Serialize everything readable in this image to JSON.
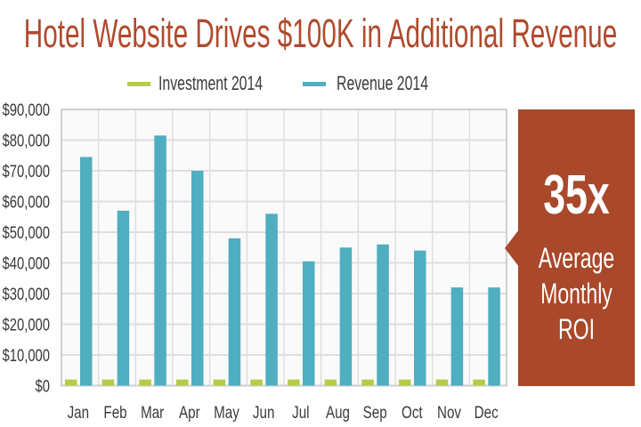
{
  "title": "Hotel Website Drives $100K in Additional Revenue",
  "colors": {
    "title": "#B04A2D",
    "investment": "#B5CC4A",
    "revenue": "#4FAEC0",
    "callout": "#A9482A",
    "grid": "#dedede",
    "axis_text": "#3a3a3a"
  },
  "callout": {
    "value": "35x",
    "line1": "Average",
    "line2": "Monthly",
    "line3": "ROI"
  },
  "chart_data": {
    "type": "bar",
    "title": "Hotel Website Drives $100K in Additional Revenue",
    "xlabel": "",
    "ylabel": "",
    "ylim": [
      0,
      90000
    ],
    "yticks": [
      0,
      10000,
      20000,
      30000,
      40000,
      50000,
      60000,
      70000,
      80000,
      90000
    ],
    "ytick_labels": [
      "$0",
      "$10,000",
      "$20,000",
      "$30,000",
      "$40,000",
      "$50,000",
      "$60,000",
      "$70,000",
      "$80,000",
      "$90,000"
    ],
    "categories": [
      "Jan",
      "Feb",
      "Mar",
      "Apr",
      "May",
      "Jun",
      "Jul",
      "Aug",
      "Sep",
      "Oct",
      "Nov",
      "Dec"
    ],
    "grid": true,
    "legend_position": "top-center",
    "series": [
      {
        "name": "Investment 2014",
        "color": "#B5CC4A",
        "values": [
          2000,
          2000,
          2000,
          2000,
          2000,
          2000,
          2000,
          2000,
          2000,
          2000,
          2000,
          2000
        ]
      },
      {
        "name": "Revenue 2014",
        "color": "#4FAEC0",
        "values": [
          74500,
          57000,
          81500,
          70000,
          48000,
          56000,
          40500,
          45000,
          46000,
          44000,
          32000,
          32000
        ]
      }
    ]
  }
}
